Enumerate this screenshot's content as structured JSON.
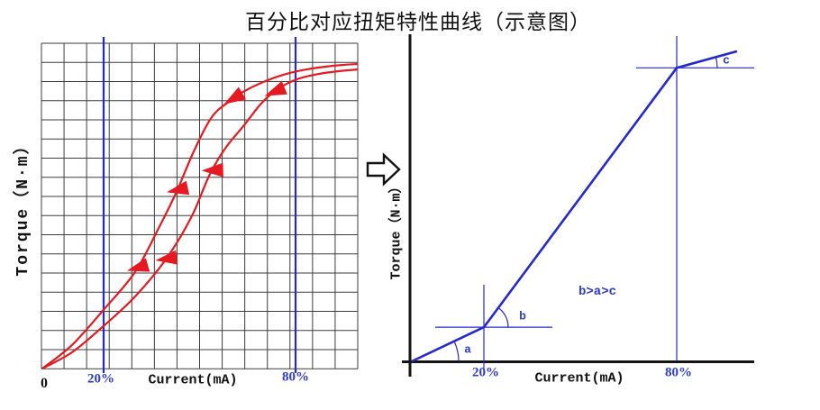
{
  "title": "百分比对应扭矩特性曲线（示意图）",
  "flow_arrow_icon": "right-block-arrow",
  "colors": {
    "red": "#e5191f",
    "blue": "#2428d0",
    "blue_text": "#2b3bd5",
    "grid": "#3d3d3d",
    "axis": "#141414"
  },
  "chart_data": [
    {
      "type": "line",
      "name": "hysteresis-curve",
      "xlabel": "Current(mA)",
      "ylabel": "Torque（N·m）",
      "origin_label": "0",
      "x_marks": [
        {
          "label": "20%",
          "pct": 20
        },
        {
          "label": "80%",
          "pct": 80
        }
      ],
      "xlim_pct": [
        0,
        100
      ],
      "ylim": [
        0,
        1
      ],
      "grid": {
        "cols": 14,
        "rows": 17
      },
      "series": [
        {
          "name": "descending-upper-curve",
          "direction": "down",
          "points_pct_torque": [
            [
              0.7,
              0.001
            ],
            [
              10,
              0.078
            ],
            [
              19.9,
              0.193
            ],
            [
              29.8,
              0.317
            ],
            [
              36.9,
              0.455
            ],
            [
              42.5,
              0.573
            ],
            [
              48.2,
              0.712
            ],
            [
              53.8,
              0.824
            ],
            [
              59.5,
              0.877
            ],
            [
              63.7,
              0.907
            ],
            [
              69.3,
              0.936
            ],
            [
              76.4,
              0.963
            ],
            [
              83.5,
              0.98
            ],
            [
              91.9,
              0.992
            ],
            [
              99.6,
              0.998
            ]
          ],
          "arrows": [
            {
              "pct": 60.5,
              "angle_deg": 211
            },
            {
              "pct": 43,
              "angle_deg": 192
            },
            {
              "pct": 30.5,
              "angle_deg": 196
            }
          ]
        },
        {
          "name": "ascending-lower-curve",
          "direction": "down",
          "points_pct_torque": [
            [
              0.7,
              0.001
            ],
            [
              10,
              0.054
            ],
            [
              19.9,
              0.14
            ],
            [
              29.8,
              0.237
            ],
            [
              39.4,
              0.358
            ],
            [
              47.3,
              0.494
            ],
            [
              53,
              0.632
            ],
            [
              58,
              0.721
            ],
            [
              63.7,
              0.794
            ],
            [
              69.3,
              0.868
            ],
            [
              74.4,
              0.915
            ],
            [
              80.6,
              0.948
            ],
            [
              87.7,
              0.966
            ],
            [
              93.4,
              0.974
            ],
            [
              99.6,
              0.98
            ]
          ],
          "arrows": [
            {
              "pct": 73.5,
              "angle_deg": 203
            },
            {
              "pct": 54,
              "angle_deg": 182
            },
            {
              "pct": 39.5,
              "angle_deg": 188
            }
          ]
        }
      ]
    },
    {
      "type": "line",
      "name": "piecewise-torque-curve",
      "xlabel": "Current(mA)",
      "ylabel": "Torque（N·m）",
      "x_marks": [
        {
          "label": "20%",
          "pct": 20
        },
        {
          "label": "80%",
          "pct": 80
        }
      ],
      "annotation": "b>a>c",
      "segment_labels": [
        "a",
        "b",
        "c"
      ],
      "points_pct_torque": [
        [
          0,
          0
        ],
        [
          20,
          0.107
        ],
        [
          80,
          0.92
        ],
        [
          99,
          0.972
        ]
      ]
    }
  ]
}
